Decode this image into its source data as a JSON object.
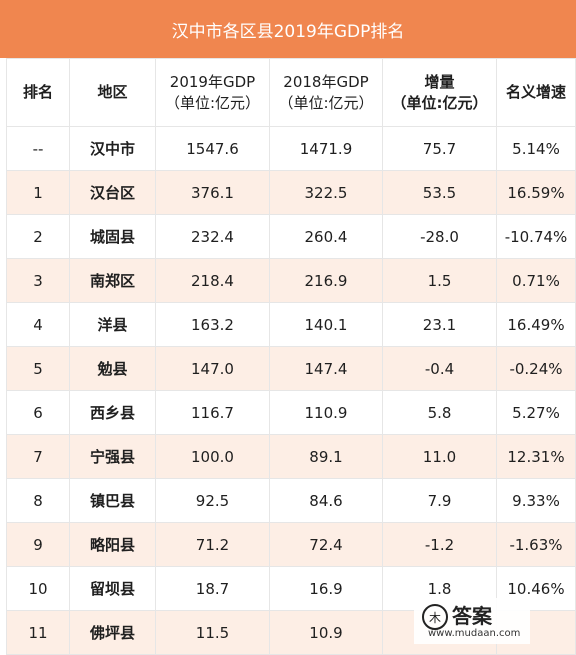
{
  "title": "汉中市各区县2019年GDP排名",
  "header": {
    "rank": "排名",
    "region": "地区",
    "gdp2019": [
      "2019年GDP",
      "（单位:亿元）"
    ],
    "gdp2018": [
      "2018年GDP",
      "（单位:亿元）"
    ],
    "increase": [
      "增量",
      "（单位:亿元）"
    ],
    "growth": "名义增速"
  },
  "rows": [
    [
      "--",
      "汉中市",
      "1547.6",
      "1471.9",
      "75.7",
      "5.14%"
    ],
    [
      "1",
      "汉台区",
      "376.1",
      "322.5",
      "53.5",
      "16.59%"
    ],
    [
      "2",
      "城固县",
      "232.4",
      "260.4",
      "-28.0",
      "-10.74%"
    ],
    [
      "3",
      "南郑区",
      "218.4",
      "216.9",
      "1.5",
      "0.71%"
    ],
    [
      "4",
      "洋县",
      "163.2",
      "140.1",
      "23.1",
      "16.49%"
    ],
    [
      "5",
      "勉县",
      "147.0",
      "147.4",
      "-0.4",
      "-0.24%"
    ],
    [
      "6",
      "西乡县",
      "116.7",
      "110.9",
      "5.8",
      "5.27%"
    ],
    [
      "7",
      "宁强县",
      "100.0",
      "89.1",
      "11.0",
      "12.31%"
    ],
    [
      "8",
      "镇巴县",
      "92.5",
      "84.6",
      "7.9",
      "9.33%"
    ],
    [
      "9",
      "略阳县",
      "71.2",
      "72.4",
      "-1.2",
      "-1.63%"
    ],
    [
      "10",
      "留坝县",
      "18.7",
      "16.9",
      "1.8",
      "10.46%"
    ],
    [
      "11",
      "佛坪县",
      "11.5",
      "10.9",
      "",
      ""
    ]
  ],
  "watermark": {
    "icon": "answer-logo-icon",
    "text": "答案",
    "url": "www.mudaan.com"
  }
}
